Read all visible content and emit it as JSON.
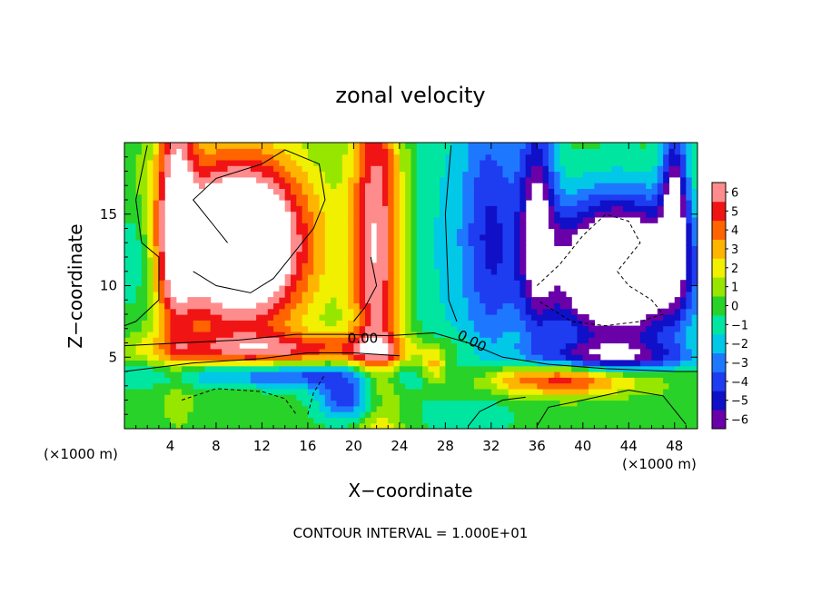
{
  "chart_data": {
    "type": "heatmap",
    "title": "zonal velocity",
    "xlabel": "X−coordinate",
    "ylabel": "Z−coordinate",
    "x_unit_left": "(×1000 m)",
    "x_unit_right": "(×1000 m)",
    "footer": "CONTOUR INTERVAL = 1.000E+01",
    "xlim": [
      0,
      50
    ],
    "ylim": [
      0,
      20
    ],
    "x_ticks": [
      4,
      8,
      12,
      16,
      20,
      24,
      28,
      32,
      36,
      40,
      44,
      48
    ],
    "x_tick_labels": [
      "4",
      "8",
      "12",
      "16",
      "20",
      "24",
      "28",
      "32",
      "36",
      "40",
      "44",
      "48"
    ],
    "y_ticks": [
      5,
      10,
      15
    ],
    "y_tick_labels": [
      "5",
      "10",
      "15"
    ],
    "colorbar": {
      "levels": [
        -6,
        -5,
        -4,
        -3,
        -2,
        -1,
        0,
        1,
        2,
        3,
        4,
        5,
        6
      ],
      "labels": [
        "−6",
        "−5",
        "−4",
        "−3",
        "−2",
        "−1",
        "0",
        "1",
        "2",
        "3",
        "4",
        "5",
        "6"
      ],
      "colors": [
        "#6a00a8",
        "#1010c8",
        "#1e3cf0",
        "#1e78ff",
        "#00c8e6",
        "#00e6a0",
        "#28d228",
        "#96e600",
        "#f0f000",
        "#ffb400",
        "#ff6400",
        "#f01414",
        "#ff8c8c"
      ]
    },
    "contour_labels": [
      "0.00",
      "0.00"
    ]
  }
}
